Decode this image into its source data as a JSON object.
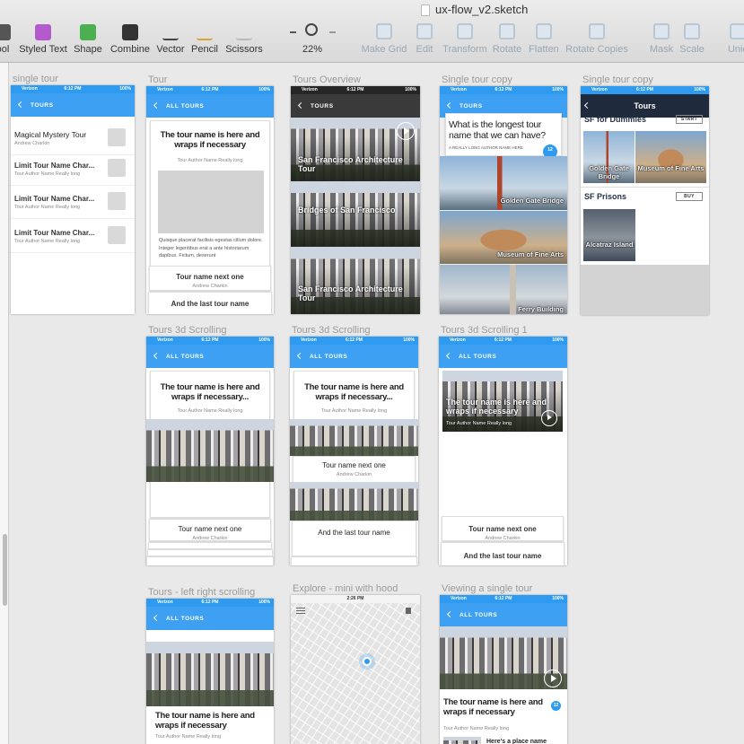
{
  "toolbar": {
    "document_title": "ux-flow_v2.sketch",
    "tools": [
      "ool",
      "Styled Text",
      "Shape",
      "Combine",
      "Vector",
      "Pencil",
      "Scissors"
    ],
    "zoom": "22%",
    "actions": [
      "Make Grid",
      "Edit",
      "Transform",
      "Rotate",
      "Flatten",
      "Rotate Copies",
      "Mask",
      "Scale",
      "Unic"
    ]
  },
  "artboards": [
    {
      "label": "single tour",
      "status": {
        "carrier": "Verizon",
        "time": "6:12 PM",
        "battery": "100%"
      },
      "nav": "TOURS",
      "list": [
        {
          "title": "Magical Mystery Tour",
          "author": "Andrew Charkin"
        },
        {
          "title": "Limit Tour Name Char...",
          "author": "Tour Author Name Really long"
        },
        {
          "title": "Limit Tour Name Char...",
          "author": "Tour Author Name Really long"
        },
        {
          "title": "Limit Tour Name Char...",
          "author": "Tour Author Name Really long"
        }
      ]
    },
    {
      "label": "Tour",
      "status": {
        "carrier": "Verizon",
        "time": "6:12 PM",
        "battery": "100%"
      },
      "nav": "ALL TOURS",
      "title": "The tour name is here and wraps if necessary",
      "author": "Tour Author Name Really long",
      "body": "Quisque placerat facilisis egestas cillum dolore. Integer legentibus erat a ante historiarum dapibus. Fictum, deserunt",
      "next_title": "Tour name next one",
      "next_author": "Andrew Charkin",
      "last_title": "And the last tour name"
    },
    {
      "label": "Tours Overview",
      "status": {
        "carrier": "Verizon",
        "time": "6:12 PM",
        "battery": "100%"
      },
      "nav": "TOURS",
      "tours": [
        "San Francisco Architecture Tour",
        "Bridges of San Francisco",
        "San Francisco Architecture Tour"
      ]
    },
    {
      "label": "Single tour copy",
      "status": {
        "carrier": "Verizon",
        "time": "6:12 PM",
        "battery": "100%"
      },
      "nav": "TOURS",
      "title": "What is the longest tour name that we can have?",
      "author": "A REALLY LONG AUTHOR NAME HERE",
      "badge": "12",
      "places": [
        "Golden Gate Bridge",
        "Museum of Fine Arts",
        "Ferry Building"
      ]
    },
    {
      "label": "Single tour copy",
      "status": {
        "carrier": "Verizon",
        "time": "6:12 PM",
        "battery": "100%"
      },
      "nav": "Tours",
      "tour1": "SF for Dummies",
      "tour1_button": "START",
      "tour1_places": [
        "Golden Gate Bridge",
        "Museum of Fine Arts"
      ],
      "tour2": "SF Prisons",
      "tour2_button": "BUY",
      "tour2_places": [
        "Alcatraz Island"
      ]
    },
    {
      "label": "Tours 3d Scrolling",
      "status": {
        "carrier": "Verizon",
        "time": "6:12 PM",
        "battery": "100%"
      },
      "nav": "ALL TOURS",
      "title": "The tour name is here and wraps if necessary...",
      "author": "Tour Author Name Really long",
      "next_title": "Tour name next one",
      "next_author": "Andrew Charkin"
    },
    {
      "label": "Tours 3d Scrolling",
      "status": {
        "carrier": "Verizon",
        "time": "6:12 PM",
        "battery": "100%"
      },
      "nav": "ALL TOURS",
      "title": "The tour name is here and wraps if necessary...",
      "author": "Tour Author Name Really long",
      "next_title": "Tour name next one",
      "next_author": "Andrew Charkin",
      "last_title": "And the last tour name"
    },
    {
      "label": "Tours 3d Scrolling 1",
      "status": {
        "carrier": "Verizon",
        "time": "6:12 PM",
        "battery": "100%"
      },
      "nav": "ALL TOURS",
      "title": "The tour name is here and wraps if necessary",
      "author": "Tour Author Name Really long",
      "next_title": "Tour name next one",
      "next_author": "Andrew Charkin",
      "last_title": "And the last tour name"
    },
    {
      "label": "Tours - left right scrolling",
      "status": {
        "carrier": "Verizon",
        "time": "6:12 PM",
        "battery": "100%"
      },
      "nav": "ALL TOURS",
      "title": "The tour name is here and wraps if necessary",
      "author": "Tour Author Name Really long"
    },
    {
      "label": "Explore - mini with hood",
      "status": {
        "time": "2:26 PM"
      }
    },
    {
      "label": "Viewing a single tour",
      "status": {
        "carrier": "Verizon",
        "time": "6:12 PM",
        "battery": "100%"
      },
      "nav": "ALL TOURS",
      "title": "The tour name is here and wraps if necessary",
      "badge": "12",
      "author": "Tour Author Name Really long",
      "place": "Here's a place name"
    }
  ]
}
